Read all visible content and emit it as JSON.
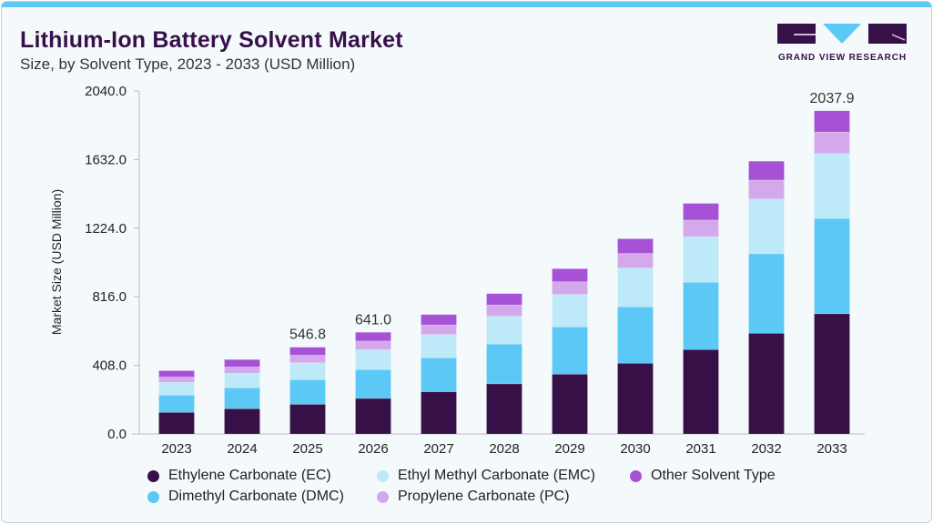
{
  "header": {
    "title": "Lithium-Ion Battery Solvent Market",
    "subtitle": "Size, by Solvent Type, 2023 - 2033 (USD Million)",
    "logo_text": "GRAND VIEW RESEARCH"
  },
  "colors": {
    "accent": "#5bc8f5",
    "title": "#371048"
  },
  "chart_data": {
    "type": "bar",
    "stacked": true,
    "title": "Lithium-Ion Battery Solvent Market",
    "subtitle": "Size, by Solvent Type, 2023 - 2033 (USD Million)",
    "xlabel": "",
    "ylabel": "Market Size (USD Million)",
    "yticks": [
      "0.0",
      "408.0",
      "816.0",
      "1224.0",
      "1632.0",
      "2040.0"
    ],
    "ylim": [
      0,
      2040
    ],
    "grid": false,
    "legend_position": "bottom",
    "categories": [
      "2023",
      "2024",
      "2025",
      "2026",
      "2027",
      "2028",
      "2029",
      "2030",
      "2031",
      "2032",
      "2033"
    ],
    "series": [
      {
        "name": "Ethylene Carbonate (EC)",
        "color": "#371048",
        "values": [
          136,
          159,
          187,
          224,
          266,
          316,
          377,
          446,
          532,
          635,
          758
        ]
      },
      {
        "name": "Dimethyl Carbonate (DMC)",
        "color": "#5bc8f5",
        "values": [
          109,
          132,
          155,
          182,
          214,
          251,
          298,
          356,
          425,
          501,
          601
        ]
      },
      {
        "name": "Ethyl Methyl Carbonate (EMC)",
        "color": "#bde9f8",
        "values": [
          80,
          92,
          107,
          125,
          147,
          176,
          205,
          245,
          287,
          346,
          409
        ]
      },
      {
        "name": "Propylene Carbonate (PC)",
        "color": "#d4a9ec",
        "values": [
          34,
          40,
          48,
          55,
          61,
          71,
          80,
          92,
          105,
          119,
          136
        ]
      },
      {
        "name": "Other Solvent Type",
        "color": "#a752d6",
        "values": [
          40,
          46,
          50,
          55,
          65,
          71,
          82,
          92,
          105,
          119,
          134
        ]
      }
    ],
    "data_labels": [
      {
        "category": "2025",
        "text": "546.8"
      },
      {
        "category": "2026",
        "text": "641.0"
      },
      {
        "category": "2033",
        "text": "2037.9"
      }
    ]
  }
}
